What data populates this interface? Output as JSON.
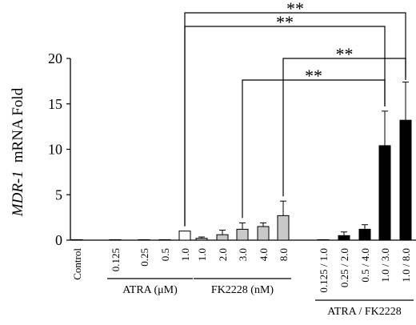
{
  "chart_data": {
    "type": "bar",
    "ylabel_italic": "MDR-1",
    "ylabel_rest": "mRNA Fold",
    "ylim": [
      0,
      20
    ],
    "yticks": [
      "0",
      "5",
      "10",
      "15",
      "20"
    ],
    "grid": false,
    "legend": "none",
    "colors": {
      "control": "#ffffff",
      "atra": "#ffffff",
      "fk": "#c8c8c8",
      "combo": "#000000"
    },
    "groups": [
      {
        "name": "ATRA  (μM)",
        "style": "atra"
      },
      {
        "name": "FK2228  (nM)",
        "style": "fk"
      },
      {
        "name": "ATRA / FK2228",
        "style": "combo"
      }
    ],
    "categories": [
      "Control",
      "0.125",
      "0.25",
      "0.5",
      "1.0",
      "1.0",
      "2.0",
      "3.0",
      "4.0",
      "8.0",
      "0.125 / 1.0",
      "0.25 / 2.0",
      "0.5 / 4.0",
      "1.0 / 3.0",
      "1.0 / 8.0"
    ],
    "category_group": [
      -1,
      0,
      0,
      0,
      0,
      1,
      1,
      1,
      1,
      1,
      2,
      2,
      2,
      2,
      2
    ],
    "values": [
      0,
      0,
      0,
      0,
      1.0,
      0.2,
      0.6,
      1.2,
      1.5,
      2.7,
      0,
      0.5,
      1.2,
      10.4,
      13.2
    ],
    "errors": [
      0,
      0,
      0,
      0,
      0,
      0.15,
      0.5,
      0.7,
      0.4,
      1.6,
      0,
      0.4,
      0.5,
      3.8,
      4.2
    ],
    "significance": [
      {
        "from": 4,
        "to": 14,
        "label": "**"
      },
      {
        "from": 4,
        "to": 13,
        "label": "**"
      },
      {
        "from": 9,
        "to": 14,
        "label": "**"
      },
      {
        "from": 7,
        "to": 13,
        "label": "**"
      }
    ]
  }
}
